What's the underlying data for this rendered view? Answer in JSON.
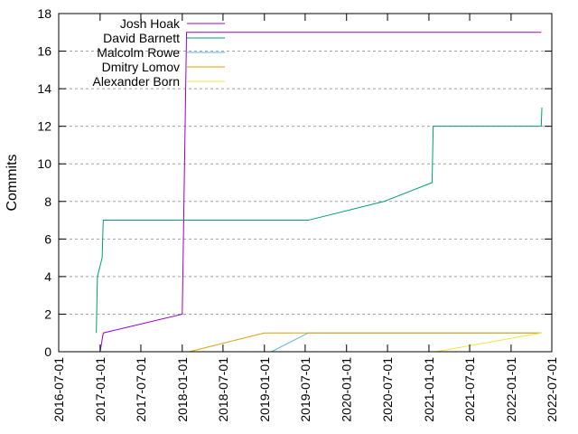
{
  "chart_data": {
    "type": "line",
    "title": "",
    "xlabel": "",
    "ylabel": "Commits",
    "grid": "horizontal-dashed",
    "legend_position": "top-left",
    "xlim": [
      "2016-07-01",
      "2022-07-01"
    ],
    "ylim": [
      0,
      18
    ],
    "x_ticks": [
      "2016-07-01",
      "2017-01-01",
      "2017-07-01",
      "2018-01-01",
      "2018-07-01",
      "2019-01-01",
      "2019-07-01",
      "2020-01-01",
      "2020-07-01",
      "2021-01-01",
      "2021-07-01",
      "2022-01-01",
      "2022-07-01"
    ],
    "y_ticks": [
      0,
      2,
      4,
      6,
      8,
      10,
      12,
      14,
      16,
      18
    ],
    "series": [
      {
        "name": "Josh Hoak",
        "color": "#9400d3",
        "points": [
          [
            "2017-01-01",
            0
          ],
          [
            "2017-01-15",
            1
          ],
          [
            "2018-01-01",
            2
          ],
          [
            "2018-01-20",
            17
          ],
          [
            "2022-05-15",
            17
          ]
        ]
      },
      {
        "name": "David Barnett",
        "color": "#009e73",
        "points": [
          [
            "2016-12-15",
            1
          ],
          [
            "2016-12-20",
            4
          ],
          [
            "2017-01-10",
            5
          ],
          [
            "2017-01-15",
            7
          ],
          [
            "2019-07-15",
            7
          ],
          [
            "2020-06-15",
            8
          ],
          [
            "2021-01-15",
            9
          ],
          [
            "2021-01-20",
            12
          ],
          [
            "2022-05-15",
            12
          ],
          [
            "2022-05-18",
            13
          ]
        ]
      },
      {
        "name": "Malcolm Rowe",
        "color": "#56b4e9",
        "points": [
          [
            "2019-02-01",
            0
          ],
          [
            "2019-07-15",
            1
          ],
          [
            "2022-05-15",
            1
          ]
        ]
      },
      {
        "name": "Dmitry Lomov",
        "color": "#e69f00",
        "points": [
          [
            "2018-02-01",
            0
          ],
          [
            "2019-01-01",
            1
          ],
          [
            "2022-05-15",
            1
          ]
        ]
      },
      {
        "name": "Alexander Born",
        "color": "#f0e442",
        "points": [
          [
            "2021-02-01",
            0
          ],
          [
            "2022-05-15",
            1
          ]
        ]
      }
    ]
  }
}
